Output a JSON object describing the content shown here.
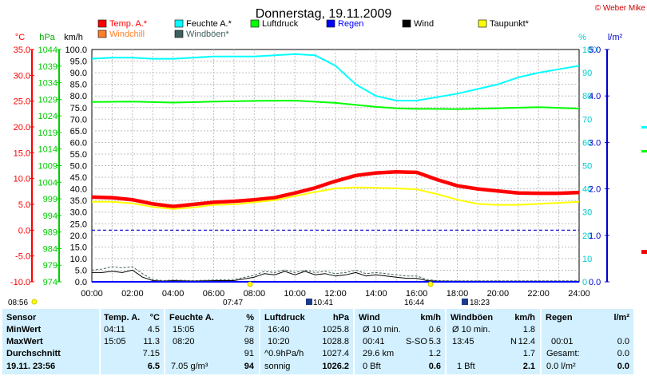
{
  "title": "Donnerstag, 19.11.2009",
  "copyright": "© Weber Mike",
  "units": {
    "temp": "°C",
    "press": "hPa",
    "wind": "km/h",
    "hum": "%",
    "rain": "l/m²"
  },
  "legend": [
    {
      "label": "Temp. A.*",
      "color": "#ff0000"
    },
    {
      "label": "Feuchte A.*",
      "color": "#00ffff"
    },
    {
      "label": "Luftdruck",
      "color": "#00ff00"
    },
    {
      "label": "Regen",
      "color": "#0000ff"
    },
    {
      "label": "Wind",
      "color": "#000000"
    },
    {
      "label": "Taupunkt*",
      "color": "#ffff00"
    },
    {
      "label": "Windchill",
      "color": "#ff7f27"
    },
    {
      "label": "Windböen*",
      "color": "#406060"
    }
  ],
  "sun": {
    "sunrise": "07:47",
    "sunset": "16:44",
    "dawn": "08:56",
    "moon_a": "10:41",
    "moon_b": "18:23"
  },
  "chart_data": {
    "type": "line",
    "title": "Donnerstag, 19.11.2009",
    "x_ticks": [
      "00:00",
      "02:00",
      "04:00",
      "06:00",
      "08:00",
      "10:00",
      "12:00",
      "14:00",
      "16:00",
      "18:00",
      "20:00",
      "22:00",
      "24:00"
    ],
    "axes": {
      "temp": {
        "label": "°C",
        "range": [
          -10,
          35
        ],
        "ticks": [
          "35.0",
          "30.0",
          "25.0",
          "20.0",
          "15.0",
          "10.0",
          "5.0",
          "0.0",
          "-5.0",
          "-10.0"
        ]
      },
      "pressure": {
        "label": "hPa",
        "range": [
          974,
          1044
        ],
        "ticks": [
          "1044",
          "1039",
          "1034",
          "1029",
          "1024",
          "1019",
          "1014",
          "1009",
          "1004",
          "999",
          "994",
          "989",
          "984",
          "979",
          "974"
        ]
      },
      "wind": {
        "label": "km/h",
        "range": [
          0,
          100
        ],
        "ticks": [
          "100.0",
          "95.0",
          "90.0",
          "85.0",
          "80.0",
          "75.0",
          "70.0",
          "65.0",
          "60.0",
          "55.0",
          "50.0",
          "45.0",
          "40.0",
          "35.0",
          "30.0",
          "25.0",
          "20.0",
          "15.0",
          "10.0",
          "5.0",
          "0.0"
        ]
      },
      "humidity": {
        "label": "%",
        "range": [
          0,
          100
        ],
        "ticks": [
          "100",
          "90",
          "80",
          "70",
          "60",
          "50",
          "40",
          "30",
          "20",
          "10",
          "0"
        ]
      },
      "rain": {
        "label": "l/m²",
        "range": [
          0,
          5
        ],
        "ticks": [
          "5.0",
          "4.0",
          "3.0",
          "2.0",
          "1.0",
          "0.0"
        ]
      }
    },
    "series": [
      {
        "name": "Temp. A.*",
        "axis": "temp",
        "color": "#ff0000",
        "x": [
          0,
          1,
          2,
          3,
          4,
          5,
          6,
          7,
          8,
          9,
          10,
          11,
          12,
          13,
          14,
          15,
          16,
          17,
          18,
          19,
          20,
          21,
          22,
          23,
          24
        ],
        "y": [
          6.4,
          6.3,
          5.9,
          5.1,
          4.6,
          5.0,
          5.4,
          5.6,
          5.9,
          6.3,
          7.2,
          8.2,
          9.5,
          10.6,
          11.1,
          11.3,
          11.2,
          9.8,
          8.6,
          8.0,
          7.6,
          7.2,
          7.15,
          7.15,
          7.3
        ]
      },
      {
        "name": "Taupunkt*",
        "axis": "temp",
        "color": "#ffff00",
        "x": [
          0,
          1,
          2,
          3,
          4,
          5,
          6,
          7,
          8,
          9,
          10,
          11,
          12,
          13,
          14,
          15,
          16,
          17,
          18,
          19,
          20,
          21,
          22,
          23,
          24
        ],
        "y": [
          5.5,
          5.5,
          5.2,
          4.5,
          4.1,
          4.4,
          4.9,
          5.0,
          5.4,
          5.8,
          6.6,
          7.4,
          8.1,
          8.3,
          8.2,
          8.1,
          7.9,
          7.0,
          5.9,
          5.1,
          4.9,
          4.9,
          5.1,
          5.3,
          5.5
        ]
      },
      {
        "name": "Feuchte A.*",
        "axis": "humidity",
        "color": "#00ffff",
        "x": [
          0,
          1,
          2,
          3,
          4,
          5,
          6,
          7,
          8,
          9,
          10,
          11,
          12,
          13,
          14,
          15,
          16,
          17,
          18,
          19,
          20,
          21,
          22,
          23,
          24
        ],
        "y": [
          96,
          96.5,
          96.5,
          96,
          96,
          96.5,
          97,
          97,
          97,
          97.5,
          98,
          97.5,
          93,
          85,
          80,
          78,
          78,
          79.5,
          81,
          83,
          85,
          88,
          90,
          91.5,
          93
        ]
      },
      {
        "name": "Luftdruck",
        "axis": "pressure",
        "color": "#00ff00",
        "x": [
          0,
          2,
          4,
          6,
          8,
          10,
          12,
          13,
          14,
          15,
          16,
          17,
          18,
          20,
          22,
          24
        ],
        "y": [
          1028.2,
          1028.3,
          1028.0,
          1028.3,
          1028.5,
          1028.6,
          1027.9,
          1027.3,
          1026.7,
          1026.3,
          1026.1,
          1026.1,
          1026.0,
          1026.3,
          1026.6,
          1026.2
        ]
      },
      {
        "name": "Wind",
        "axis": "wind",
        "color": "#000000",
        "x": [
          0,
          0.5,
          1,
          1.5,
          2,
          2.5,
          3,
          3.5,
          4,
          5,
          6,
          7,
          8,
          8.5,
          9,
          9.5,
          10,
          10.5,
          11,
          11.5,
          12,
          12.5,
          13,
          13.5,
          14,
          14.5,
          15,
          15.5,
          16,
          16.5,
          17,
          18,
          20,
          22,
          24
        ],
        "y": [
          4,
          4,
          4.5,
          4,
          5,
          2,
          0.5,
          0.3,
          0.5,
          0.3,
          0.5,
          0.5,
          2,
          3.5,
          3,
          4.5,
          3,
          4.5,
          3,
          3.5,
          2.5,
          3,
          4,
          2.5,
          3,
          2.5,
          2,
          1.5,
          1.5,
          0.5,
          0.3,
          0.2,
          0.2,
          0.2,
          0.2
        ]
      },
      {
        "name": "Windböen*",
        "axis": "wind",
        "color": "#406060",
        "x": [
          0,
          0.5,
          1,
          1.5,
          2,
          2.5,
          3,
          3.5,
          4,
          5,
          6,
          7,
          8,
          8.5,
          9,
          9.5,
          10,
          10.5,
          11,
          11.5,
          12,
          12.5,
          13,
          13.5,
          14,
          14.5,
          15,
          15.5,
          16,
          16.5,
          17,
          18,
          20,
          22,
          24
        ],
        "y": [
          5,
          5.5,
          6.5,
          6,
          6.5,
          3.5,
          1,
          0.5,
          0.8,
          0.5,
          0.8,
          1,
          2.8,
          4.5,
          4,
          5.2,
          4,
          5,
          4,
          4.5,
          3.5,
          4,
          5,
          3.5,
          4,
          3.5,
          3,
          2.5,
          2.5,
          1,
          0.5,
          0.4,
          0.4,
          0.4,
          0.4
        ]
      },
      {
        "name": "Regen",
        "axis": "rain",
        "color": "#0000ff",
        "x": [
          0,
          24
        ],
        "y": [
          0,
          0
        ]
      }
    ],
    "reference_line": {
      "axis": "temp",
      "value": 0,
      "color": "#0000cc"
    },
    "grid": true
  },
  "table": {
    "headers": {
      "sensor": "Sensor",
      "temp": "Temp. A.",
      "temp_unit": "°C",
      "hum": "Feuchte A.",
      "hum_unit": "%",
      "press": "Luftdruck",
      "press_unit": "hPa",
      "wind": "Wind",
      "wind_unit": "km/h",
      "gust": "Windböen",
      "gust_unit": "km/h",
      "rain": "Regen",
      "rain_unit": "l/m²"
    },
    "rows": [
      {
        "label": "MinWert",
        "temp_time": "04:11",
        "temp_val": "4.5",
        "hum_time": "15:05",
        "hum_val": "78",
        "press_time": "16:40",
        "press_val": "1025.8",
        "wind_a": "Ø 10 min.",
        "wind_val": "0.6",
        "gust_a": "Ø 10 min.",
        "gust_val": "1.8",
        "rain_a": "",
        "rain_val": ""
      },
      {
        "label": "MaxWert",
        "temp_time": "15:05",
        "temp_val": "11.3",
        "hum_time": "08:20",
        "hum_val": "98",
        "press_time": "10:20",
        "press_val": "1028.8",
        "wind_a": "00:41",
        "wind_b": "S-SO",
        "wind_val": "5.3",
        "gust_a": "13:45",
        "gust_b": "N",
        "gust_val": "12.4",
        "rain_a": "00:01",
        "rain_val": "0.0"
      },
      {
        "label": "Durchschnitt",
        "temp_time": "",
        "temp_val": "7.15",
        "hum_time": "",
        "hum_val": "91",
        "press_time": "^0.9hPa/h",
        "press_val": "1027.4",
        "wind_a": "29.6 km",
        "wind_val": "1.2",
        "gust_a": "",
        "gust_val": "1.7",
        "rain_a": "Gesamt:",
        "rain_val": "0.0"
      },
      {
        "label": "19.11.  23:56",
        "temp_time": "",
        "temp_val": "6.5",
        "hum_time": "7.05 g/m³",
        "hum_val": "94",
        "press_time": "sonnig",
        "press_val": "1026.2",
        "wind_a": "0 Bft",
        "wind_val": "0.6",
        "gust_a": "1 Bft",
        "gust_val": "2.1",
        "rain_a": "0.0 l/m²",
        "rain_val": "0.0"
      }
    ]
  }
}
